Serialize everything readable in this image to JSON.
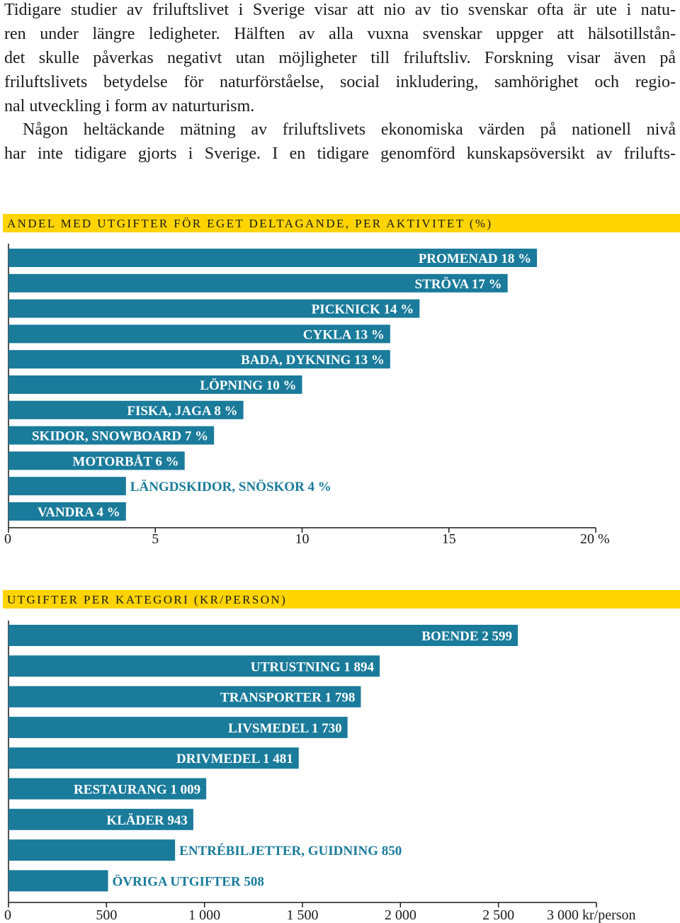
{
  "text": {
    "p1_lines": [
      "Tidigare studier av friluftslivet i Sverige visar att nio av tio svenskar ofta är ute i natu-",
      "ren under längre ledigheter. Hälften av alla vuxna svenskar uppger att hälsotillstån-",
      "det skulle påverkas negativt utan möjligheter till friluftsliv. Forskning visar även på",
      "friluftslivets betydelse för naturförståelse, social inkludering, samhörighet och regio-",
      "nal utveckling i form av naturturism."
    ],
    "p2_lines": [
      "Någon heltäckande mätning av friluftslivets ekonomiska värden på nationell nivå",
      "har inte tidigare gjorts i Sverige. I en tidigare genomförd kunskapsöversikt av frilufts-"
    ]
  },
  "colors": {
    "bar": "#1a7b9b",
    "band": "#ffd400",
    "label_inside": "#ffffff",
    "label_outside": "#1a7b9b"
  },
  "chart_data": [
    {
      "type": "bar",
      "orientation": "horizontal",
      "title": "ANDEL MED UTGIFTER FÖR EGET DELTAGANDE, PER AKTIVITET (%)",
      "categories": [
        "PROMENAD",
        "STRÖVA",
        "PICKNICK",
        "CYKLA",
        "BADA, DYKNING",
        "LÖPNING",
        "FISKA, JAGA",
        "SKIDOR, SNOWBOARD",
        "MOTORBÅT",
        "LÄNGDSKIDOR, SNÖSKOR",
        "VANDRA"
      ],
      "values": [
        18,
        17,
        14,
        13,
        13,
        10,
        8,
        7,
        6,
        4,
        4
      ],
      "data_labels": [
        "PROMENAD 18 %",
        "STRÖVA 17 %",
        "PICKNICK 14 %",
        "CYKLA 13 %",
        "BADA, DYKNING 13 %",
        "LÖPNING 10 %",
        "FISKA, JAGA 8 %",
        "SKIDOR, SNOWBOARD 7 %",
        "MOTORBÅT 6 %",
        "LÄNGDSKIDOR, SNÖSKOR 4 %",
        "VANDRA 4 %"
      ],
      "xlim": [
        0,
        20
      ],
      "ticks": [
        0,
        5,
        10,
        15,
        20
      ],
      "tick_labels": [
        "0",
        "5",
        "10",
        "15",
        "20 %"
      ]
    },
    {
      "type": "bar",
      "orientation": "horizontal",
      "title": "UTGIFTER PER KATEGORI (KR/PERSON)",
      "categories": [
        "BOENDE",
        "UTRUSTNING",
        "TRANSPORTER",
        "LIVSMEDEL",
        "DRIVMEDEL",
        "RESTAURANG",
        "KLÄDER",
        "ENTRÉBILJETTER, GUIDNING",
        "ÖVRIGA UTGIFTER"
      ],
      "values": [
        2599,
        1894,
        1798,
        1730,
        1481,
        1009,
        943,
        850,
        508
      ],
      "data_labels": [
        "BOENDE 2 599",
        "UTRUSTNING 1 894",
        "TRANSPORTER 1 798",
        "LIVSMEDEL 1 730",
        "DRIVMEDEL 1 481",
        "RESTAURANG 1 009",
        "KLÄDER 943",
        "ENTRÉBILJETTER, GUIDNING 850",
        "ÖVRIGA UTGIFTER 508"
      ],
      "xlim": [
        0,
        3000
      ],
      "ticks": [
        0,
        500,
        1000,
        1500,
        2000,
        2500,
        3000
      ],
      "tick_labels": [
        "0",
        "500",
        "1 000",
        "1 500",
        "2 000",
        "2 500",
        "3 000 kr/person"
      ]
    }
  ]
}
